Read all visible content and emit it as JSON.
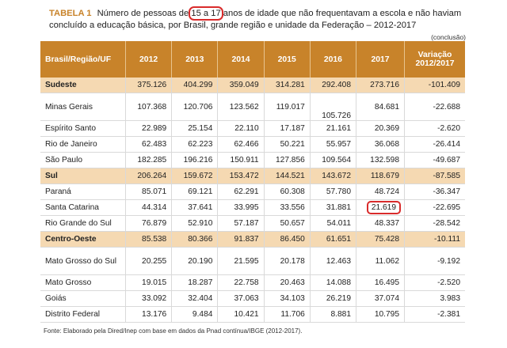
{
  "caption": {
    "label": "TABELA 1",
    "text_before": "Número de pessoas de",
    "highlight": "15 a 17",
    "text_after": "anos de idade que não frequentavam a escola e não haviam concluído a educação básica, por Brasil, grande região e unidade da Federação – 2012-2017"
  },
  "conclusao": "(conclusão)",
  "headers": [
    "Brasil/Região/UF",
    "2012",
    "2013",
    "2014",
    "2015",
    "2016",
    "2017",
    "Variação 2012/2017"
  ],
  "rows": [
    {
      "name": "Sudeste",
      "cells": [
        "375.126",
        "404.299",
        "359.049",
        "314.281",
        "292.408",
        "273.716",
        "-101.409"
      ]
    },
    {
      "name": "Minas Gerais",
      "cells": [
        "107.368",
        "120.706",
        "123.562",
        "119.017",
        "105.726",
        "84.681",
        "-22.688"
      ]
    },
    {
      "name": "Espírito Santo",
      "cells": [
        "22.989",
        "25.154",
        "22.110",
        "17.187",
        "21.161",
        "20.369",
        "-2.620"
      ]
    },
    {
      "name": "Rio de Janeiro",
      "cells": [
        "62.483",
        "62.223",
        "62.466",
        "50.221",
        "55.957",
        "36.068",
        "-26.414"
      ]
    },
    {
      "name": "São Paulo",
      "cells": [
        "182.285",
        "196.216",
        "150.911",
        "127.856",
        "109.564",
        "132.598",
        "-49.687"
      ]
    },
    {
      "name": "Sul",
      "cells": [
        "206.264",
        "159.672",
        "153.472",
        "144.521",
        "143.672",
        "118.679",
        "-87.585"
      ]
    },
    {
      "name": "Paraná",
      "cells": [
        "85.071",
        "69.121",
        "62.291",
        "60.308",
        "57.780",
        "48.724",
        "-36.347"
      ]
    },
    {
      "name": "Santa Catarina",
      "cells": [
        "44.314",
        "37.641",
        "33.995",
        "33.556",
        "31.881",
        "21.619",
        "-22.695"
      ]
    },
    {
      "name": "Rio Grande do Sul",
      "cells": [
        "76.879",
        "52.910",
        "57.187",
        "50.657",
        "54.011",
        "48.337",
        "-28.542"
      ]
    },
    {
      "name": "Centro-Oeste",
      "cells": [
        "85.538",
        "80.366",
        "91.837",
        "86.450",
        "61.651",
        "75.428",
        "-10.111"
      ]
    },
    {
      "name": "Mato Grosso do Sul",
      "cells": [
        "20.255",
        "20.190",
        "21.595",
        "20.178",
        "12.463",
        "11.062",
        "-9.192"
      ]
    },
    {
      "name": "Mato Grosso",
      "cells": [
        "19.015",
        "18.287",
        "22.758",
        "20.463",
        "14.088",
        "16.495",
        "-2.520"
      ]
    },
    {
      "name": "Goiás",
      "cells": [
        "33.092",
        "32.404",
        "37.063",
        "34.103",
        "26.219",
        "37.074",
        "3.983"
      ]
    },
    {
      "name": "Distrito Federal",
      "cells": [
        "13.176",
        "9.484",
        "10.421",
        "11.706",
        "8.881",
        "10.795",
        "-2.381"
      ]
    }
  ],
  "source": "Fonte: Elaborado pela Dired/Inep com base em dados da Pnad contínua/IBGE (2012-2017).",
  "colors": {
    "header": "#c8832a",
    "region_row": "#f5d9b2",
    "highlight": "#d92b2b"
  }
}
